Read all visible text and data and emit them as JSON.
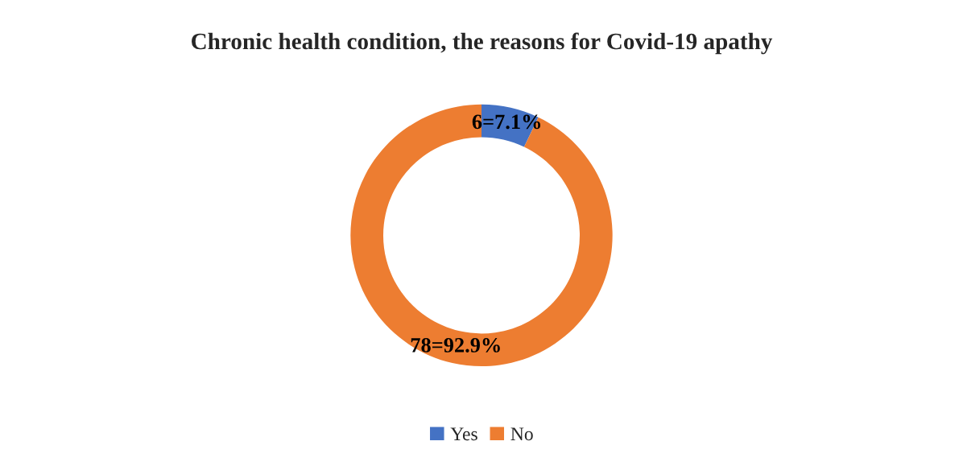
{
  "chart_data": {
    "type": "donut",
    "title": "Chronic health condition, the reasons for Covid-19 apathy",
    "categories": [
      "Yes",
      "No"
    ],
    "values": [
      6,
      78
    ],
    "value_labels": [
      "6=7.1%",
      "78=92.9%"
    ],
    "colors": [
      "#4472c4",
      "#ed7d31"
    ],
    "legend": "bottom"
  }
}
